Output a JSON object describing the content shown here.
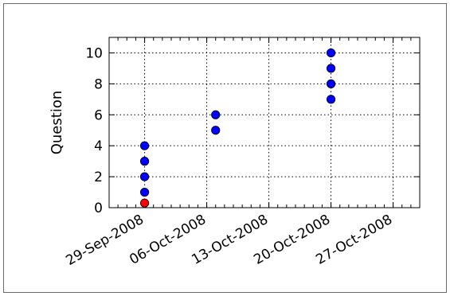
{
  "chart_data": {
    "type": "scatter",
    "title": "",
    "xlabel": "",
    "ylabel": "Question",
    "x_ticks": [
      "29-Sep-2008",
      "06-Oct-2008",
      "13-Oct-2008",
      "20-Oct-2008",
      "27-Oct-2008"
    ],
    "y_ticks": [
      "0",
      "2",
      "4",
      "6",
      "8",
      "10"
    ],
    "xlim": [
      "2008-09-25",
      "2008-10-30"
    ],
    "ylim": [
      0,
      11
    ],
    "grid": true,
    "grid_style": "dotted",
    "legend": "none",
    "series": [
      {
        "color": "#0000ff",
        "points": [
          {
            "x": "2008-09-29",
            "y": 1
          },
          {
            "x": "2008-09-29",
            "y": 2
          },
          {
            "x": "2008-09-29",
            "y": 3
          },
          {
            "x": "2008-09-29",
            "y": 4
          },
          {
            "x": "2008-10-07",
            "y": 5
          },
          {
            "x": "2008-10-07",
            "y": 6
          },
          {
            "x": "2008-10-20",
            "y": 7
          },
          {
            "x": "2008-10-20",
            "y": 8
          },
          {
            "x": "2008-10-20",
            "y": 9
          },
          {
            "x": "2008-10-20",
            "y": 10
          }
        ]
      },
      {
        "color": "#ff0000",
        "points": [
          {
            "x": "2008-09-29",
            "y": 0.3
          }
        ]
      }
    ]
  }
}
